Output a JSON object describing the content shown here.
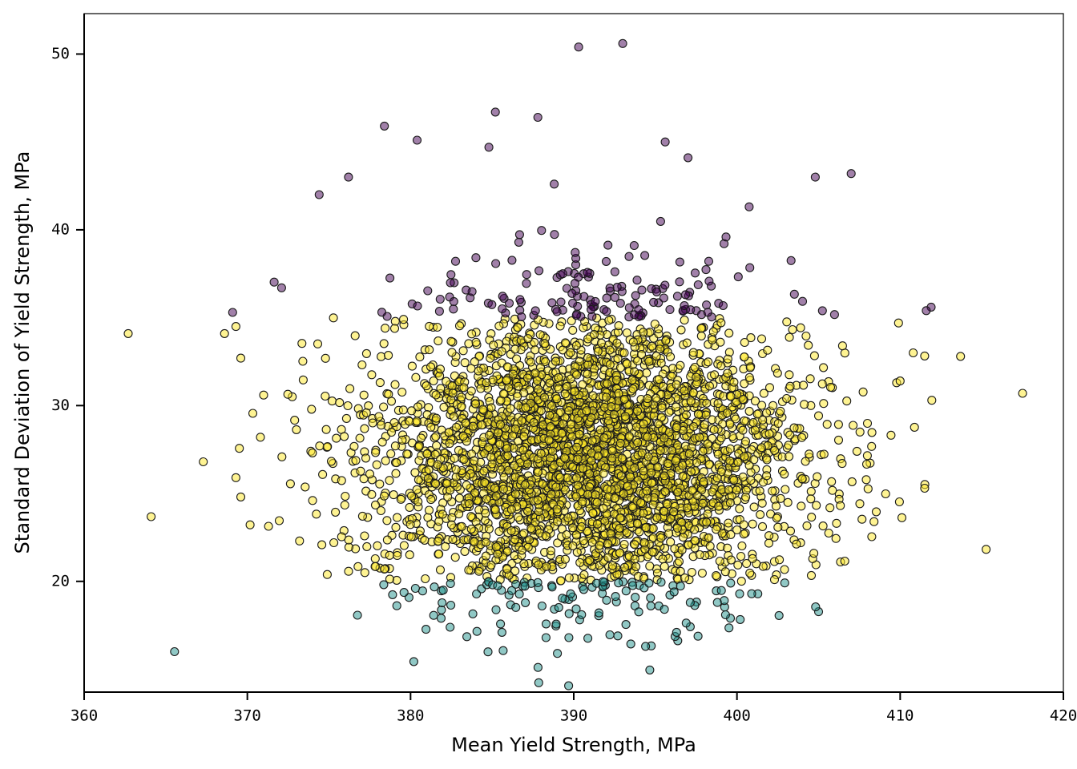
{
  "chart_data": {
    "type": "scatter",
    "title": "",
    "xlabel": "Mean Yield Strength, MPa",
    "ylabel": "Standard Deviation of Yield Strength, MPa",
    "xlim": [
      360,
      420
    ],
    "ylim": [
      13.7,
      52.3
    ],
    "xticks": [
      360,
      370,
      380,
      390,
      400,
      410,
      420
    ],
    "yticks": [
      20,
      30,
      40,
      50
    ],
    "grid": false,
    "legend": "none",
    "series": [
      {
        "color": "#fde725",
        "class": "middle",
        "count": 3500,
        "sample_points": [
          [
            362.7,
            34.1
          ],
          [
            367.3,
            26.8
          ],
          [
            369.3,
            25.9
          ],
          [
            369.6,
            24.8
          ],
          [
            369.6,
            32.7
          ],
          [
            368.6,
            34.1
          ],
          [
            369.3,
            34.5
          ],
          [
            370.8,
            28.2
          ],
          [
            371.0,
            30.6
          ],
          [
            373.2,
            22.3
          ],
          [
            375.3,
            22.2
          ],
          [
            377.2,
            20.5
          ],
          [
            374.0,
            24.6
          ],
          [
            378.4,
            20.7
          ],
          [
            409.9,
            34.7
          ],
          [
            410.8,
            33.0
          ],
          [
            410.0,
            31.4
          ],
          [
            411.5,
            25.3
          ],
          [
            413.7,
            32.8
          ],
          [
            417.5,
            30.7
          ],
          [
            408.4,
            23.4
          ],
          [
            406.1,
            23.3
          ],
          [
            402.3,
            20.1
          ],
          [
            396.8,
            20.2
          ]
        ]
      },
      {
        "color": "#440154",
        "class": "high",
        "count": 150,
        "sample_points": [
          [
            390.3,
            50.4
          ],
          [
            393.0,
            50.6
          ],
          [
            385.2,
            46.7
          ],
          [
            387.8,
            46.4
          ],
          [
            378.4,
            45.9
          ],
          [
            380.4,
            45.1
          ],
          [
            384.8,
            44.7
          ],
          [
            395.6,
            45.0
          ],
          [
            397.0,
            44.1
          ],
          [
            376.2,
            43.0
          ],
          [
            404.8,
            43.0
          ],
          [
            407.0,
            43.2
          ],
          [
            374.4,
            42.0
          ],
          [
            388.8,
            42.6
          ],
          [
            369.1,
            35.3
          ],
          [
            372.1,
            36.7
          ],
          [
            411.9,
            35.6
          ],
          [
            411.6,
            35.4
          ]
        ]
      },
      {
        "color": "#21918c",
        "class": "low",
        "count": 130,
        "sample_points": [
          [
            389.0,
            15.9
          ],
          [
            394.4,
            16.3
          ],
          [
            388.3,
            16.8
          ],
          [
            389.7,
            16.8
          ],
          [
            392.7,
            16.9
          ],
          [
            385.6,
            17.1
          ],
          [
            396.3,
            17.1
          ],
          [
            399.6,
            17.9
          ],
          [
            399.3,
            18.1
          ],
          [
            398.8,
            18.8
          ],
          [
            380.3,
            19.6
          ],
          [
            382.0,
            19.5
          ]
        ]
      }
    ]
  }
}
